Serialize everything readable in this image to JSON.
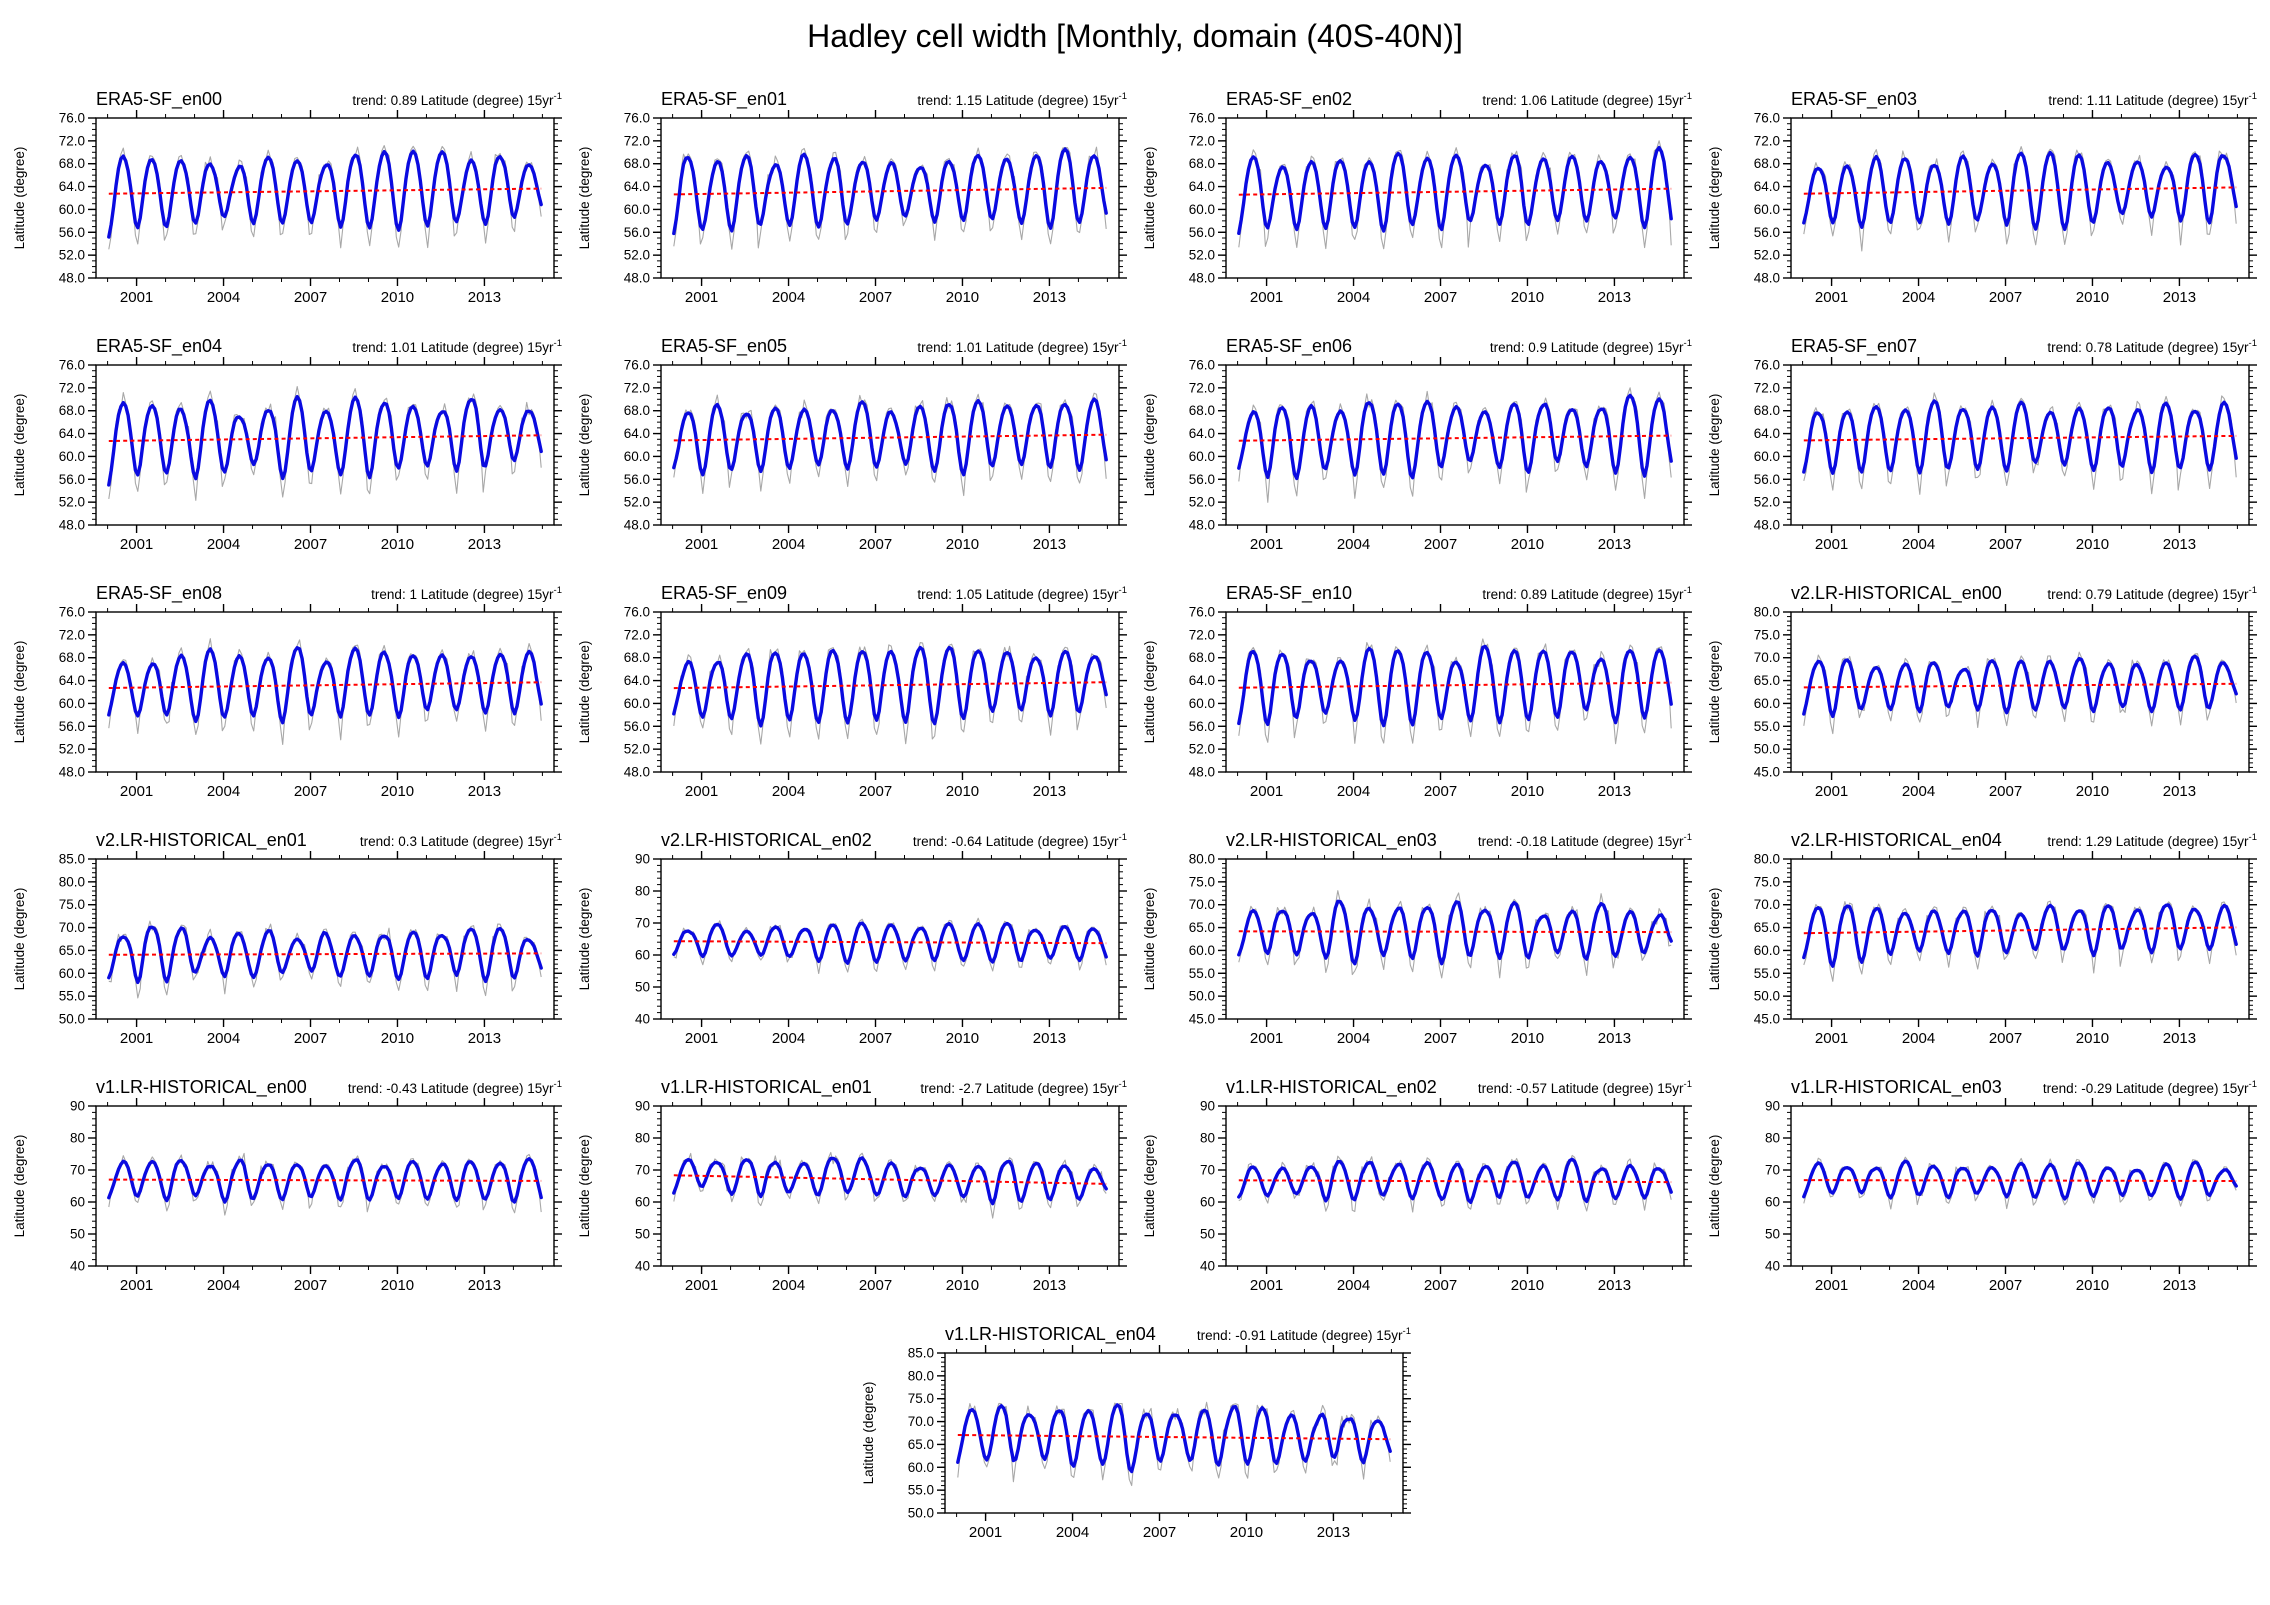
{
  "figure": {
    "title": "Hadley cell width [Monthly, domain (40S-40N)]"
  },
  "axes_defaults": {
    "ylabel": "Latitude (degree)",
    "xlim": [
      1999.6,
      2015.4
    ],
    "x_major_ticks": [
      2001,
      2004,
      2007,
      2010,
      2013
    ],
    "x_minor_tick_start": 2000,
    "x_minor_tick_end": 2015,
    "x_minor_step_years": 1,
    "data_start_year": 2000,
    "data_end_year": 2015,
    "trend_label_prefix": "trend: ",
    "trend_label_suffix": " Latitude (degree) 15yr",
    "trend_superscript": "-1",
    "seasonal_shape": [
      -1.35,
      -0.85,
      -0.15,
      0.4,
      0.72,
      0.92,
      1.0,
      0.93,
      0.72,
      0.38,
      -0.35,
      -1.15
    ]
  },
  "series_style": {
    "series": [
      {
        "name": "monthly raw",
        "color": "#a8a8a8",
        "width": 1.1,
        "style": "solid"
      },
      {
        "name": "smoothed",
        "color": "#0a0ae0",
        "width": 3.4,
        "style": "solid"
      },
      {
        "name": "linear trend",
        "color": "#ff0000",
        "width": 2.0,
        "style": "dashed"
      }
    ],
    "frame_color": "#000000"
  },
  "layout_rows": [
    4,
    4,
    4,
    4,
    4,
    1
  ],
  "chart_data": [
    {
      "type": "line",
      "title": "ERA5-SF_en00",
      "trend_value": "0.89",
      "ylim": [
        48,
        76
      ],
      "ytick_step": 4,
      "ytick_minor_step": 1,
      "ytick_decimals": 1,
      "mean": 63.2,
      "seasonal_amplitude": 5.9,
      "noise_sd": 1.25,
      "seed": 11
    },
    {
      "type": "line",
      "title": "ERA5-SF_en01",
      "trend_value": "1.15",
      "ylim": [
        48,
        76
      ],
      "ytick_step": 4,
      "ytick_minor_step": 1,
      "ytick_decimals": 1,
      "mean": 63.2,
      "seasonal_amplitude": 5.9,
      "noise_sd": 1.25,
      "seed": 22
    },
    {
      "type": "line",
      "title": "ERA5-SF_en02",
      "trend_value": "1.06",
      "ylim": [
        48,
        76
      ],
      "ytick_step": 4,
      "ytick_minor_step": 1,
      "ytick_decimals": 1,
      "mean": 63.1,
      "seasonal_amplitude": 5.9,
      "noise_sd": 1.25,
      "seed": 33
    },
    {
      "type": "line",
      "title": "ERA5-SF_en03",
      "trend_value": "1.11",
      "ylim": [
        48,
        76
      ],
      "ytick_step": 4,
      "ytick_minor_step": 1,
      "ytick_decimals": 1,
      "mean": 63.3,
      "seasonal_amplitude": 5.9,
      "noise_sd": 1.25,
      "seed": 44
    },
    {
      "type": "line",
      "title": "ERA5-SF_en04",
      "trend_value": "1.01",
      "ylim": [
        48,
        76
      ],
      "ytick_step": 4,
      "ytick_minor_step": 1,
      "ytick_decimals": 1,
      "mean": 63.2,
      "seasonal_amplitude": 5.9,
      "noise_sd": 1.25,
      "seed": 55
    },
    {
      "type": "line",
      "title": "ERA5-SF_en05",
      "trend_value": "1.01",
      "ylim": [
        48,
        76
      ],
      "ytick_step": 4,
      "ytick_minor_step": 1,
      "ytick_decimals": 1,
      "mean": 63.3,
      "seasonal_amplitude": 5.8,
      "noise_sd": 1.25,
      "seed": 66
    },
    {
      "type": "line",
      "title": "ERA5-SF_en06",
      "trend_value": "0.9",
      "ylim": [
        48,
        76
      ],
      "ytick_step": 4,
      "ytick_minor_step": 1,
      "ytick_decimals": 1,
      "mean": 63.2,
      "seasonal_amplitude": 5.9,
      "noise_sd": 1.25,
      "seed": 77
    },
    {
      "type": "line",
      "title": "ERA5-SF_en07",
      "trend_value": "0.78",
      "ylim": [
        48,
        76
      ],
      "ytick_step": 4,
      "ytick_minor_step": 1,
      "ytick_decimals": 1,
      "mean": 63.2,
      "seasonal_amplitude": 5.9,
      "noise_sd": 1.25,
      "seed": 88
    },
    {
      "type": "line",
      "title": "ERA5-SF_en08",
      "trend_value": "1",
      "ylim": [
        48,
        76
      ],
      "ytick_step": 4,
      "ytick_minor_step": 1,
      "ytick_decimals": 1,
      "mean": 63.2,
      "seasonal_amplitude": 5.9,
      "noise_sd": 1.25,
      "seed": 99
    },
    {
      "type": "line",
      "title": "ERA5-SF_en09",
      "trend_value": "1.05",
      "ylim": [
        48,
        76
      ],
      "ytick_step": 4,
      "ytick_minor_step": 1,
      "ytick_decimals": 1,
      "mean": 63.2,
      "seasonal_amplitude": 5.9,
      "noise_sd": 1.25,
      "seed": 110
    },
    {
      "type": "line",
      "title": "ERA5-SF_en10",
      "trend_value": "0.89",
      "ylim": [
        48,
        76
      ],
      "ytick_step": 4,
      "ytick_minor_step": 1,
      "ytick_decimals": 1,
      "mean": 63.2,
      "seasonal_amplitude": 5.9,
      "noise_sd": 1.25,
      "seed": 121
    },
    {
      "type": "line",
      "title": "v2.LR-HISTORICAL_en00",
      "trend_value": "0.79",
      "ylim": [
        45,
        80
      ],
      "ytick_step": 5,
      "ytick_minor_step": 1,
      "ytick_decimals": 1,
      "mean": 63.9,
      "seasonal_amplitude": 5.2,
      "noise_sd": 1.5,
      "seed": 132
    },
    {
      "type": "line",
      "title": "v2.LR-HISTORICAL_en01",
      "trend_value": "0.3",
      "ylim": [
        50,
        85
      ],
      "ytick_step": 5,
      "ytick_minor_step": 1,
      "ytick_decimals": 1,
      "mean": 64.2,
      "seasonal_amplitude": 5.0,
      "noise_sd": 1.5,
      "seed": 143
    },
    {
      "type": "line",
      "title": "v2.LR-HISTORICAL_en02",
      "trend_value": "-0.64",
      "ylim": [
        40,
        90
      ],
      "ytick_step": 10,
      "ytick_minor_step": 2,
      "ytick_decimals": 0,
      "mean": 64.0,
      "seasonal_amplitude": 5.2,
      "noise_sd": 1.5,
      "seed": 154
    },
    {
      "type": "line",
      "title": "v2.LR-HISTORICAL_en03",
      "trend_value": "-0.18",
      "ylim": [
        45,
        80
      ],
      "ytick_step": 5,
      "ytick_minor_step": 1,
      "ytick_decimals": 1,
      "mean": 64.1,
      "seasonal_amplitude": 5.4,
      "noise_sd": 1.6,
      "seed": 165
    },
    {
      "type": "line",
      "title": "v2.LR-HISTORICAL_en04",
      "trend_value": "1.29",
      "ylim": [
        45,
        80
      ],
      "ytick_step": 5,
      "ytick_minor_step": 1,
      "ytick_decimals": 1,
      "mean": 64.4,
      "seasonal_amplitude": 5.3,
      "noise_sd": 1.6,
      "seed": 176
    },
    {
      "type": "line",
      "title": "v1.LR-HISTORICAL_en00",
      "trend_value": "-0.43",
      "ylim": [
        40,
        90
      ],
      "ytick_step": 10,
      "ytick_minor_step": 2,
      "ytick_decimals": 0,
      "mean": 66.8,
      "seasonal_amplitude": 5.6,
      "noise_sd": 2.0,
      "seed": 187
    },
    {
      "type": "line",
      "title": "v1.LR-HISTORICAL_en01",
      "trend_value": "-2.7",
      "ylim": [
        40,
        90
      ],
      "ytick_step": 10,
      "ytick_minor_step": 2,
      "ytick_decimals": 0,
      "mean": 67.0,
      "seasonal_amplitude": 5.6,
      "noise_sd": 2.0,
      "seed": 198
    },
    {
      "type": "line",
      "title": "v1.LR-HISTORICAL_en02",
      "trend_value": "-0.57",
      "ylim": [
        40,
        90
      ],
      "ytick_step": 10,
      "ytick_minor_step": 2,
      "ytick_decimals": 0,
      "mean": 66.5,
      "seasonal_amplitude": 5.6,
      "noise_sd": 2.0,
      "seed": 209
    },
    {
      "type": "line",
      "title": "v1.LR-HISTORICAL_en03",
      "trend_value": "-0.29",
      "ylim": [
        40,
        90
      ],
      "ytick_step": 10,
      "ytick_minor_step": 2,
      "ytick_decimals": 0,
      "mean": 66.7,
      "seasonal_amplitude": 5.3,
      "noise_sd": 1.9,
      "seed": 220
    },
    {
      "type": "line",
      "title": "v1.LR-HISTORICAL_en04",
      "trend_value": "-0.91",
      "ylim": [
        50,
        85
      ],
      "ytick_step": 5,
      "ytick_minor_step": 1,
      "ytick_decimals": 1,
      "mean": 66.6,
      "seasonal_amplitude": 5.8,
      "noise_sd": 2.0,
      "seed": 231
    }
  ]
}
